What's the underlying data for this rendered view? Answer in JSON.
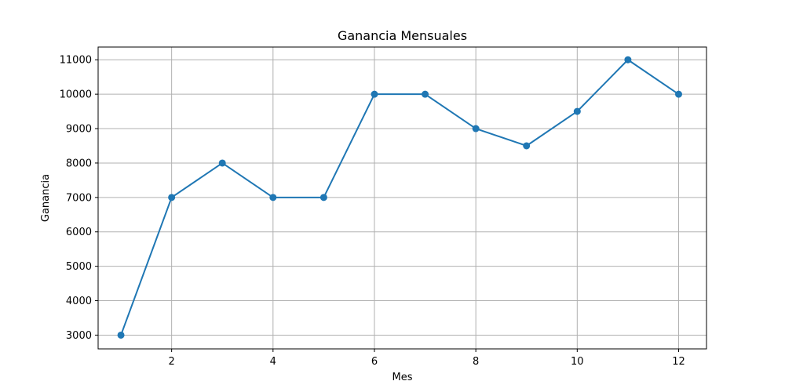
{
  "chart_data": {
    "type": "line",
    "title": "Ganancia Mensuales",
    "xlabel": "Mes",
    "ylabel": "Ganancia",
    "x": [
      1,
      2,
      3,
      4,
      5,
      6,
      7,
      8,
      9,
      10,
      11,
      12
    ],
    "series": [
      {
        "values": [
          3000,
          7000,
          8000,
          7000,
          7000,
          10000,
          10000,
          9000,
          8500,
          9500,
          11000,
          10000
        ],
        "color": "#1f77b4",
        "marker": "circle"
      }
    ],
    "xlim": [
      0.55,
      12.55
    ],
    "ylim": [
      2600,
      11370
    ],
    "xticks": [
      2,
      4,
      6,
      8,
      10,
      12
    ],
    "xtick_labels": [
      "2",
      "4",
      "6",
      "8",
      "10",
      "12"
    ],
    "yticks": [
      3000,
      4000,
      5000,
      6000,
      7000,
      8000,
      9000,
      10000,
      11000
    ],
    "ytick_labels": [
      "3000",
      "4000",
      "5000",
      "6000",
      "7000",
      "8000",
      "9000",
      "10000",
      "11000"
    ],
    "grid": true,
    "grid_color": "#b0b0b0",
    "legend": "none"
  }
}
